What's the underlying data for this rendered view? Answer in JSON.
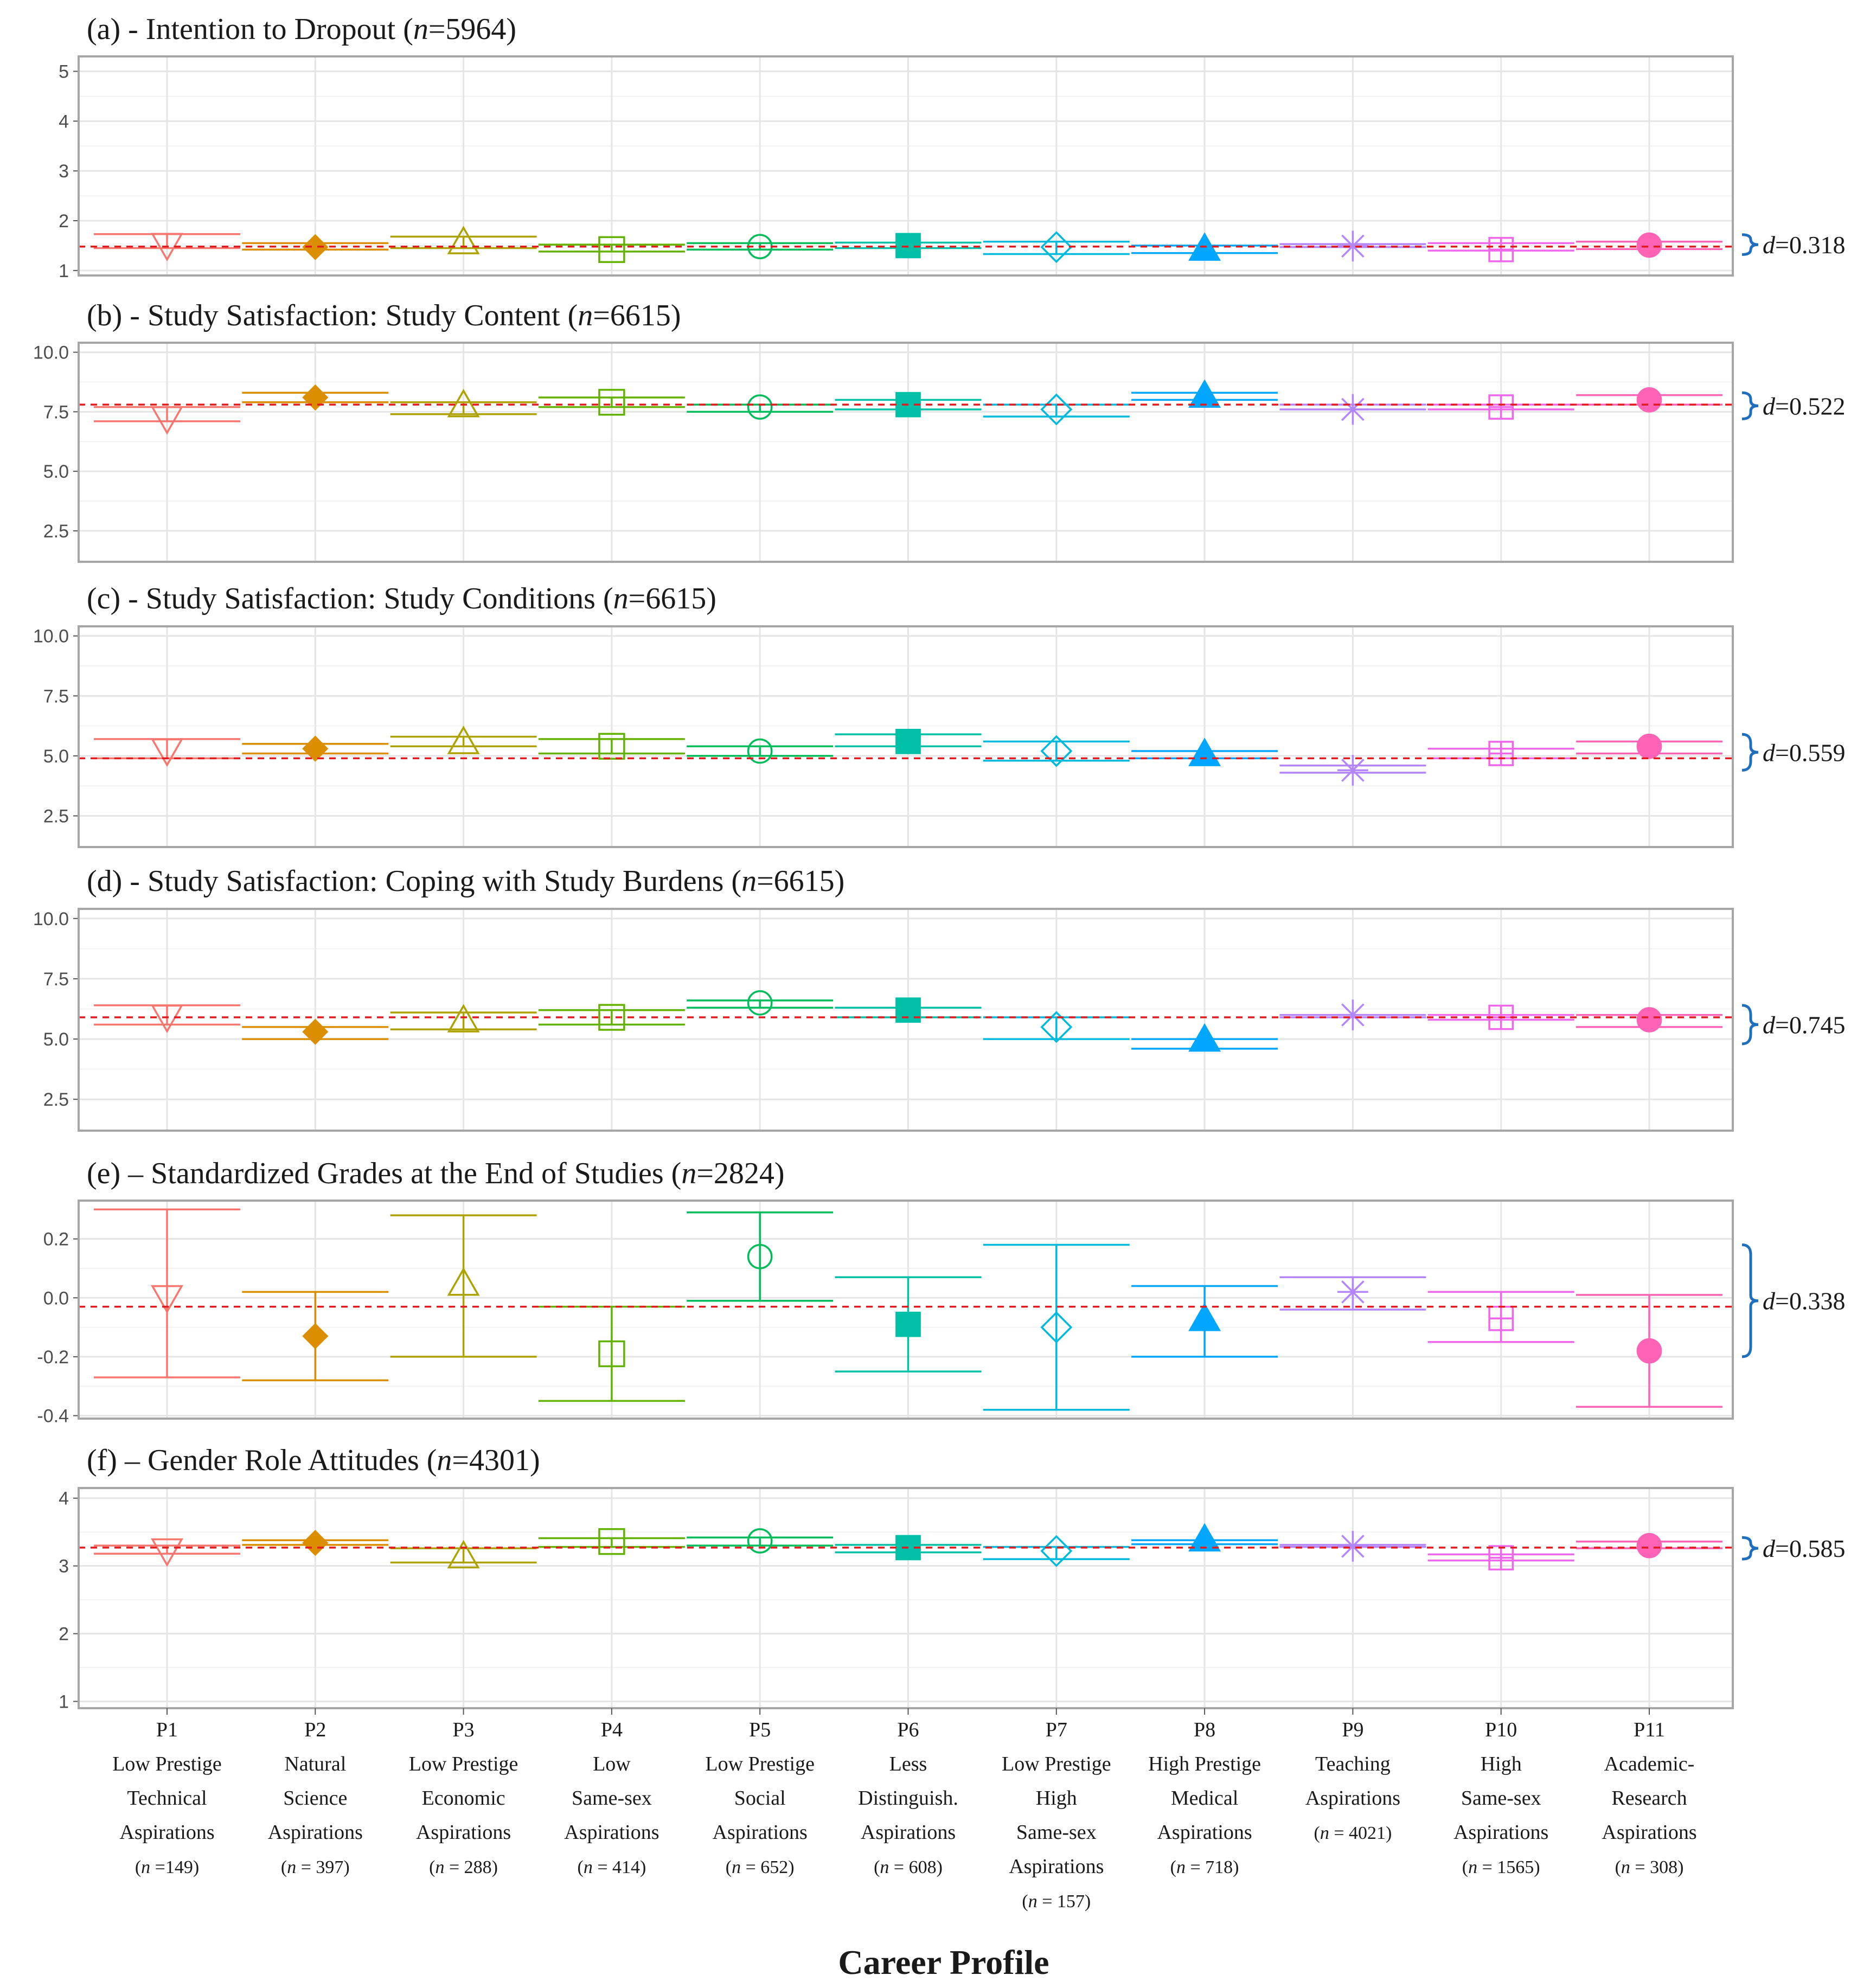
{
  "figure": {
    "x_axis_title": "Career Profile"
  },
  "profiles": [
    {
      "code": "P1",
      "lines": [
        "Low Prestige",
        "Technical",
        "Aspirations"
      ],
      "n_label": "(n =149)",
      "color": "#F8766D",
      "shape": "tri-down-open"
    },
    {
      "code": "P2",
      "lines": [
        "Natural",
        "Science",
        "Aspirations"
      ],
      "n_label": "(n = 397)",
      "color": "#DB8E00",
      "shape": "diamond-filled"
    },
    {
      "code": "P3",
      "lines": [
        "Low Prestige",
        "Economic",
        "Aspirations"
      ],
      "n_label": "(n = 288)",
      "color": "#AEA200",
      "shape": "tri-up-open"
    },
    {
      "code": "P4",
      "lines": [
        "Low",
        "Same-sex",
        "Aspirations"
      ],
      "n_label": "(n = 414)",
      "color": "#64B200",
      "shape": "square-open"
    },
    {
      "code": "P5",
      "lines": [
        "Low Prestige",
        "Social",
        "Aspirations"
      ],
      "n_label": "(n = 652)",
      "color": "#00BD5C",
      "shape": "circle-open"
    },
    {
      "code": "P6",
      "lines": [
        "Less",
        "Distinguish.",
        "Aspirations"
      ],
      "n_label": "(n = 608)",
      "color": "#00C1A7",
      "shape": "square-filled"
    },
    {
      "code": "P7",
      "lines": [
        "Low Prestige",
        "High",
        "Same-sex",
        "Aspirations"
      ],
      "n_label": "(n = 157)",
      "color": "#00BADE",
      "shape": "diamond-open"
    },
    {
      "code": "P8",
      "lines": [
        "High Prestige",
        "Medical",
        "Aspirations"
      ],
      "n_label": "(n = 718)",
      "color": "#00A6FF",
      "shape": "tri-up-filled"
    },
    {
      "code": "P9",
      "lines": [
        "Teaching",
        "Aspirations"
      ],
      "n_label": "(n = 4021)",
      "color": "#B385FF",
      "shape": "asterisk"
    },
    {
      "code": "P10",
      "lines": [
        "High",
        "Same-sex",
        "Aspirations"
      ],
      "n_label": "(n = 1565)",
      "color": "#EF67EB",
      "shape": "square-plus"
    },
    {
      "code": "P11",
      "lines": [
        "Academic-",
        "Research",
        "Aspirations"
      ],
      "n_label": "(n = 308)",
      "color": "#FF63B6",
      "shape": "circle-filled"
    }
  ],
  "colors": {
    "reference_line": "#E41A1C",
    "brace": "#1F6FBF",
    "panel_border": "#A6A6A6",
    "grid": "#E5E5E5"
  },
  "chart_data": [
    {
      "type": "errorbar",
      "title_prefix": "(a) - Intention to Dropout (",
      "title_n": "n",
      "title_suffix": "=5964)",
      "ylim": [
        0.9,
        5.3
      ],
      "yticks": [
        "1",
        "2",
        "3",
        "4",
        "5"
      ],
      "ytick_values": [
        1,
        2,
        3,
        4,
        5
      ],
      "reference_value": 1.48,
      "effect_prefix": "d",
      "effect_value": "=0.318",
      "brace_range": [
        1.32,
        1.72
      ],
      "mean": [
        1.5,
        1.47,
        1.58,
        1.42,
        1.48,
        1.5,
        1.47,
        1.45,
        1.49,
        1.42,
        1.51
      ],
      "lower": [
        1.45,
        1.42,
        1.45,
        1.38,
        1.42,
        1.45,
        1.33,
        1.35,
        1.47,
        1.4,
        1.43
      ],
      "upper": [
        1.73,
        1.55,
        1.68,
        1.52,
        1.55,
        1.56,
        1.58,
        1.5,
        1.53,
        1.55,
        1.58
      ]
    },
    {
      "type": "errorbar",
      "title_prefix": "(b) - Study Satisfaction: Study Content (",
      "title_n": "n",
      "title_suffix": "=6615)",
      "ylim": [
        1.2,
        10.4
      ],
      "yticks": [
        "2.5",
        "5.0",
        "7.5",
        "10.0"
      ],
      "ytick_values": [
        2.5,
        5.0,
        7.5,
        10.0
      ],
      "reference_value": 7.8,
      "effect_prefix": "d",
      "effect_value": "=0.522",
      "brace_range": [
        7.2,
        8.3
      ],
      "mean": [
        7.2,
        8.1,
        7.8,
        7.9,
        7.7,
        7.8,
        7.6,
        8.2,
        7.6,
        7.7,
        8.0
      ],
      "lower": [
        7.1,
        7.9,
        7.4,
        7.7,
        7.5,
        7.6,
        7.3,
        8.0,
        7.6,
        7.6,
        7.8
      ],
      "upper": [
        7.7,
        8.3,
        7.9,
        8.1,
        7.8,
        8.0,
        7.8,
        8.3,
        7.8,
        7.8,
        8.2
      ]
    },
    {
      "type": "errorbar",
      "title_prefix": "(c) - Study Satisfaction: Study Conditions (",
      "title_n": "n",
      "title_suffix": "=6615)",
      "ylim": [
        1.2,
        10.4
      ],
      "yticks": [
        "2.5",
        "5.0",
        "7.5",
        "10.0"
      ],
      "ytick_values": [
        2.5,
        5.0,
        7.5,
        10.0
      ],
      "reference_value": 4.9,
      "effect_prefix": "d",
      "effect_value": "=0.559",
      "brace_range": [
        4.4,
        5.9
      ],
      "mean": [
        5.2,
        5.3,
        5.6,
        5.4,
        5.2,
        5.6,
        5.2,
        5.1,
        4.4,
        5.1,
        5.4
      ],
      "lower": [
        4.9,
        5.1,
        5.4,
        5.1,
        5.0,
        5.4,
        4.8,
        4.9,
        4.3,
        4.9,
        5.1
      ],
      "upper": [
        5.7,
        5.5,
        5.8,
        5.7,
        5.4,
        5.9,
        5.6,
        5.2,
        4.6,
        5.3,
        5.6
      ]
    },
    {
      "type": "errorbar",
      "title_prefix": "(d) - Study Satisfaction: Coping with Study Burdens (",
      "title_n": "n",
      "title_suffix": "=6615)",
      "ylim": [
        1.2,
        10.4
      ],
      "yticks": [
        "2.5",
        "5.0",
        "7.5",
        "10.0"
      ],
      "ytick_values": [
        2.5,
        5.0,
        7.5,
        10.0
      ],
      "reference_value": 5.9,
      "effect_prefix": "d",
      "effect_value": "=0.745",
      "brace_range": [
        4.8,
        6.4
      ],
      "mean": [
        5.9,
        5.3,
        5.8,
        5.9,
        6.5,
        6.2,
        5.5,
        5.0,
        6.0,
        5.9,
        5.8
      ],
      "lower": [
        5.6,
        5.0,
        5.4,
        5.6,
        6.3,
        5.9,
        5.0,
        4.6,
        5.9,
        5.8,
        5.5
      ],
      "upper": [
        6.4,
        5.5,
        6.1,
        6.2,
        6.6,
        6.3,
        5.9,
        5.0,
        6.0,
        6.0,
        6.0
      ]
    },
    {
      "type": "errorbar",
      "title_prefix": "(e) – Standardized Grades at the End of Studies (",
      "title_n": "n",
      "title_suffix": "=2824)",
      "ylim": [
        -0.41,
        0.33
      ],
      "yticks": [
        "-0.4",
        "-0.2",
        "0.0",
        "0.2"
      ],
      "ytick_values": [
        -0.4,
        -0.2,
        0.0,
        0.2
      ],
      "reference_value": -0.03,
      "effect_prefix": "d",
      "effect_value": "=0.338",
      "brace_range": [
        -0.2,
        0.18
      ],
      "mean": [
        0.0,
        -0.13,
        0.05,
        -0.19,
        0.14,
        -0.09,
        -0.1,
        -0.07,
        0.02,
        -0.07,
        -0.18
      ],
      "lower": [
        -0.27,
        -0.28,
        -0.2,
        -0.35,
        -0.01,
        -0.25,
        -0.38,
        -0.2,
        -0.04,
        -0.15,
        -0.37
      ],
      "upper": [
        0.3,
        0.02,
        0.28,
        -0.03,
        0.29,
        0.07,
        0.18,
        0.04,
        0.07,
        0.02,
        0.01
      ]
    },
    {
      "type": "errorbar",
      "title_prefix": "(f) – Gender Role Attitudes (",
      "title_n": "n",
      "title_suffix": "=4301)",
      "ylim": [
        0.9,
        4.15
      ],
      "yticks": [
        "1",
        "2",
        "3",
        "4"
      ],
      "ytick_values": [
        1,
        2,
        3,
        4
      ],
      "reference_value": 3.27,
      "effect_prefix": "d",
      "effect_value": "=0.585",
      "brace_range": [
        3.1,
        3.42
      ],
      "mean": [
        3.22,
        3.34,
        3.15,
        3.36,
        3.37,
        3.27,
        3.22,
        3.4,
        3.29,
        3.12,
        3.3
      ],
      "lower": [
        3.18,
        3.31,
        3.05,
        3.28,
        3.3,
        3.2,
        3.1,
        3.32,
        3.28,
        3.08,
        3.26
      ],
      "upper": [
        3.3,
        3.38,
        3.26,
        3.41,
        3.42,
        3.31,
        3.28,
        3.38,
        3.31,
        3.17,
        3.36
      ]
    }
  ]
}
